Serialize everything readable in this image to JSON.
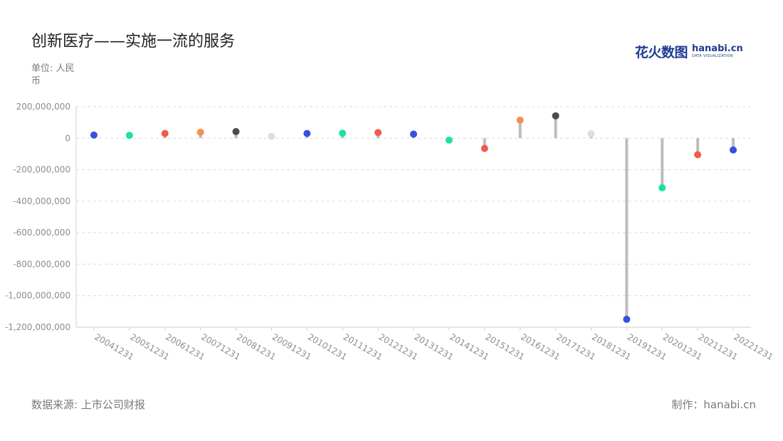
{
  "title": "创新医疗——实施一流的服务",
  "unit_label": "单位: 人民币",
  "source_label": "数据来源: 上市公司财报",
  "credit_label": "制作：hanabi.cn",
  "logo": {
    "cn": "花火数图",
    "en": "hanabi.cn",
    "sub": "DATA VISUALIZATION"
  },
  "chart_data": {
    "type": "lollipop",
    "categories": [
      "20041231",
      "20051231",
      "20061231",
      "20071231",
      "20081231",
      "20091231",
      "20101231",
      "20111231",
      "20121231",
      "20131231",
      "20141231",
      "20151231",
      "20161231",
      "20171231",
      "20181231",
      "20191231",
      "20201231",
      "20211231",
      "20221231"
    ],
    "values": [
      20000000,
      18000000,
      30000000,
      38000000,
      42000000,
      12000000,
      30000000,
      32000000,
      36000000,
      26000000,
      -12000000,
      -65000000,
      115000000,
      142000000,
      28000000,
      -1150000000,
      -315000000,
      -105000000,
      -75000000
    ],
    "dot_colors": [
      "#3451e0",
      "#1ee0a0",
      "#f25a50",
      "#f5914f",
      "#4a4a55",
      "#dadcea",
      "#3451e0",
      "#1ee0a0",
      "#f25a50",
      "#3451e0",
      "#1ee0a0",
      "#f25a50",
      "#f5914f",
      "#4a4a55",
      "#dadcea",
      "#3451e0",
      "#1ee0a0",
      "#f25a50",
      "#3451e0"
    ],
    "stem_color": "#bdbdbd",
    "ylim": [
      -1200000000,
      200000000
    ],
    "yticks": [
      200000000,
      0,
      -200000000,
      -400000000,
      -600000000,
      -800000000,
      -1000000000,
      -1200000000
    ],
    "ytick_labels": [
      "200,000,000",
      "0",
      "-200,000,000",
      "-400,000,000",
      "-600,000,000",
      "-800,000,000",
      "-1,000,000,000",
      "-1,200,000,000"
    ],
    "grid": true,
    "xlabel": "",
    "ylabel": ""
  }
}
